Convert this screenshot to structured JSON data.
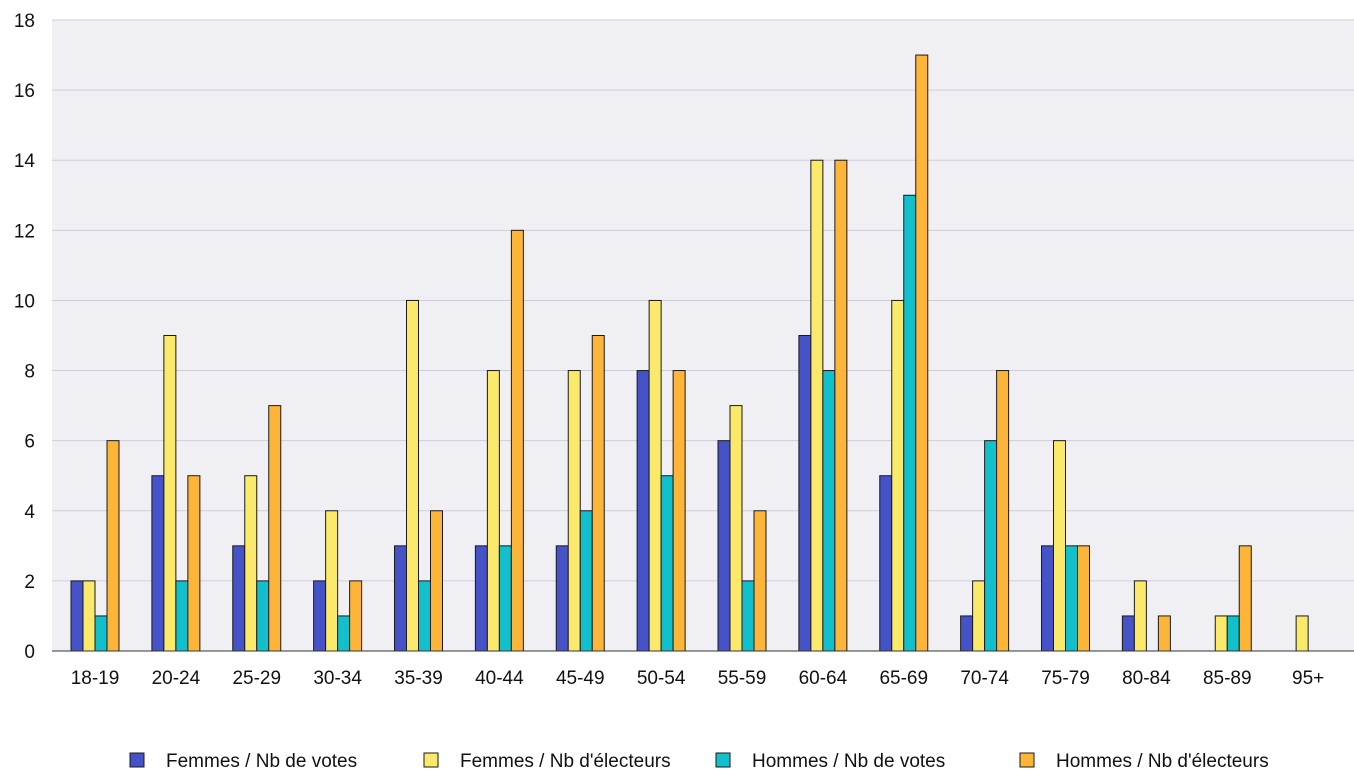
{
  "chart_data": {
    "type": "bar",
    "categories": [
      "18-19",
      "20-24",
      "25-29",
      "30-34",
      "35-39",
      "40-44",
      "45-49",
      "50-54",
      "55-59",
      "60-64",
      "65-69",
      "70-74",
      "75-79",
      "80-84",
      "85-89",
      "95+"
    ],
    "series": [
      {
        "name": "Femmes / Nb de votes",
        "color": "#4652c8",
        "values": [
          2,
          5,
          3,
          2,
          3,
          3,
          3,
          8,
          6,
          9,
          5,
          1,
          3,
          1,
          0,
          0
        ]
      },
      {
        "name": "Femmes / Nb d'électeurs",
        "color": "#fbe96b",
        "values": [
          2,
          9,
          5,
          4,
          10,
          8,
          8,
          10,
          7,
          14,
          10,
          2,
          6,
          2,
          1,
          1
        ]
      },
      {
        "name": "Hommes / Nb de votes",
        "color": "#12bfcc",
        "values": [
          1,
          2,
          2,
          1,
          2,
          3,
          4,
          5,
          2,
          8,
          13,
          6,
          3,
          0,
          1,
          0
        ]
      },
      {
        "name": "Hommes / Nb d'électeurs",
        "color": "#fcb538",
        "values": [
          6,
          5,
          7,
          2,
          4,
          12,
          9,
          8,
          4,
          14,
          17,
          8,
          3,
          1,
          3,
          0
        ]
      }
    ],
    "y_ticks": [
      "0",
      "2",
      "4",
      "6",
      "8",
      "10",
      "12",
      "14",
      "16",
      "18"
    ],
    "ylim": [
      0,
      18
    ],
    "grid": true,
    "legend_position": "bottom",
    "plot_background": "#f0eff4"
  }
}
